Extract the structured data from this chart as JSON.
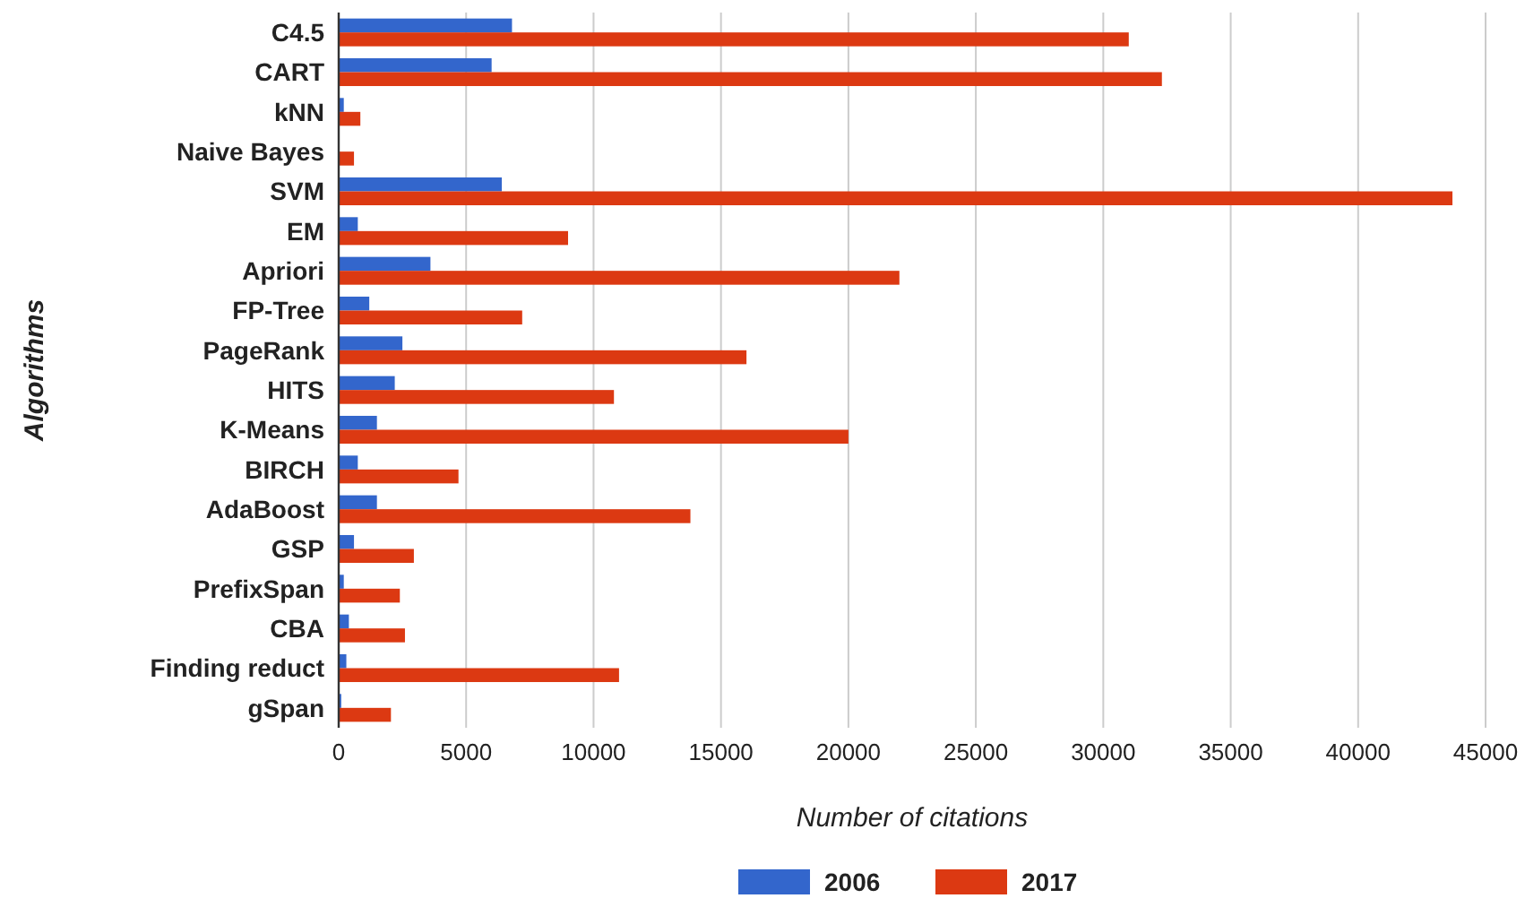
{
  "chart_data": {
    "type": "bar",
    "orientation": "horizontal",
    "xlabel": "Number of citations",
    "ylabel": "Algorithms",
    "categories": [
      "C4.5",
      "CART",
      "kNN",
      "Naive Bayes",
      "SVM",
      "EM",
      "Apriori",
      "FP-Tree",
      "PageRank",
      "HITS",
      "K-Means",
      "BIRCH",
      "AdaBoost",
      "GSP",
      "PrefixSpan",
      "CBA",
      "Finding reduct",
      "gSpan"
    ],
    "series": [
      {
        "name": "2006",
        "color": "#3366cc",
        "values": [
          6800,
          6000,
          200,
          null,
          6400,
          750,
          3600,
          1200,
          2500,
          2200,
          1500,
          750,
          1500,
          600,
          200,
          400,
          300,
          100
        ]
      },
      {
        "name": "2017",
        "color": "#dc3912",
        "values": [
          31000,
          32300,
          850,
          600,
          43700,
          9000,
          22000,
          7200,
          16000,
          10800,
          20000,
          4700,
          13800,
          2950,
          2400,
          2600,
          11000,
          2050
        ]
      }
    ],
    "xlim": [
      0,
      45000
    ],
    "xticks": [
      0,
      5000,
      10000,
      15000,
      20000,
      25000,
      30000,
      35000,
      40000,
      45000
    ],
    "grid": "x",
    "legend": "bottom"
  }
}
